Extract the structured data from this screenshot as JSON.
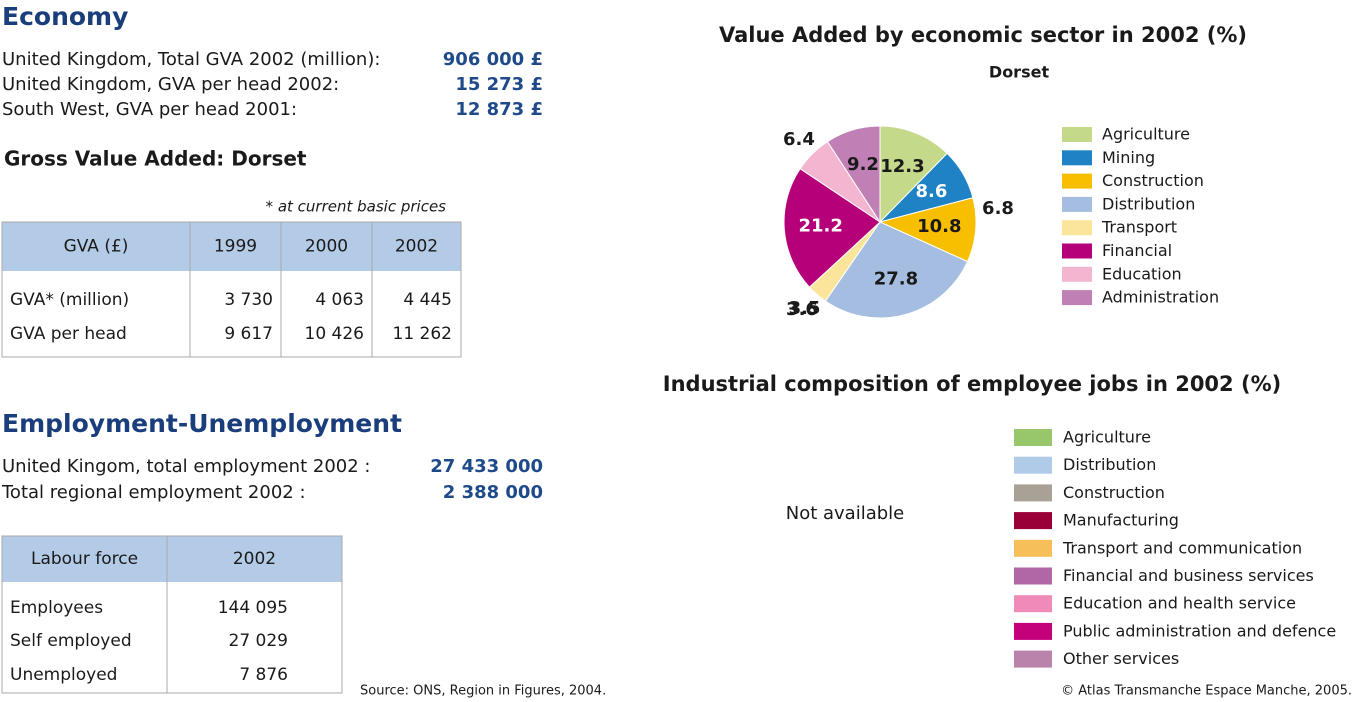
{
  "economy": {
    "title": "Economy",
    "rows": [
      {
        "label": "United Kingdom, Total GVA 2002 (million):",
        "value": "906 000 £"
      },
      {
        "label": "United Kingdom, GVA per head 2002:",
        "value": "15 273 £"
      },
      {
        "label": "South West, GVA per head 2001:",
        "value": "12 873 £"
      }
    ]
  },
  "gva": {
    "title": "Gross Value Added: Dorset",
    "note": "* at current basic prices",
    "table": {
      "header": [
        "GVA (£)",
        "1999",
        "2000",
        "2002"
      ],
      "rows": [
        [
          "GVA* (million)",
          "3 730",
          "4 063",
          "4 445"
        ],
        [
          "GVA per head",
          "9 617",
          "10 426",
          "11 262"
        ]
      ]
    }
  },
  "employment": {
    "title": "Employment-Unemployment",
    "rows": [
      {
        "label": "United Kingom, total employment 2002 :",
        "value": "27 433 000"
      },
      {
        "label": "Total regional employment 2002 :",
        "value": "2 388 000"
      }
    ],
    "table": {
      "header": [
        "Labour force",
        "2002"
      ],
      "rows": [
        [
          "Employees",
          "144 095"
        ],
        [
          "Self employed",
          "27 029"
        ],
        [
          "Unemployed",
          "7 876"
        ]
      ]
    }
  },
  "chart_data": {
    "type": "pie",
    "title": "Value Added by economic sector in 2002 (%)",
    "subtitle": "Dorset",
    "categories": [
      "Agriculture",
      "Mining",
      "Construction",
      "Distribution",
      "Transport",
      "Financial",
      "Education",
      "Administration"
    ],
    "values": [
      12.3,
      8.6,
      10.8,
      27.8,
      3.5,
      21.2,
      6.4,
      9.2
    ],
    "colors": [
      "#c5d98a",
      "#1f82c4",
      "#f7bf00",
      "#a5bde0",
      "#fbe59a",
      "#b5007a",
      "#f3b5d0",
      "#c07fb5"
    ],
    "annotations": [
      "6.8",
      "3.6"
    ]
  },
  "employment_chart": {
    "title": "Industrial composition of employee jobs in 2002 (%)",
    "note": "Not available",
    "legend": [
      {
        "name": "Agriculture",
        "color": "#97c66b"
      },
      {
        "name": "Distribution",
        "color": "#b0cbe8"
      },
      {
        "name": "Construction",
        "color": "#a8a196"
      },
      {
        "name": "Manufacturing",
        "color": "#9a0037"
      },
      {
        "name": "Transport and communication",
        "color": "#f7bf5a"
      },
      {
        "name": "Financial and business services",
        "color": "#b166a5"
      },
      {
        "name": "Education and health service",
        "color": "#ef8ab9"
      },
      {
        "name": "Public administration and defence",
        "color": "#c4007a"
      },
      {
        "name": "Other services",
        "color": "#b983ab"
      }
    ]
  },
  "source": "Source: ONS, Region in Figures, 2004.",
  "copyright": "© Atlas Transmanche Espace Manche, 2005."
}
